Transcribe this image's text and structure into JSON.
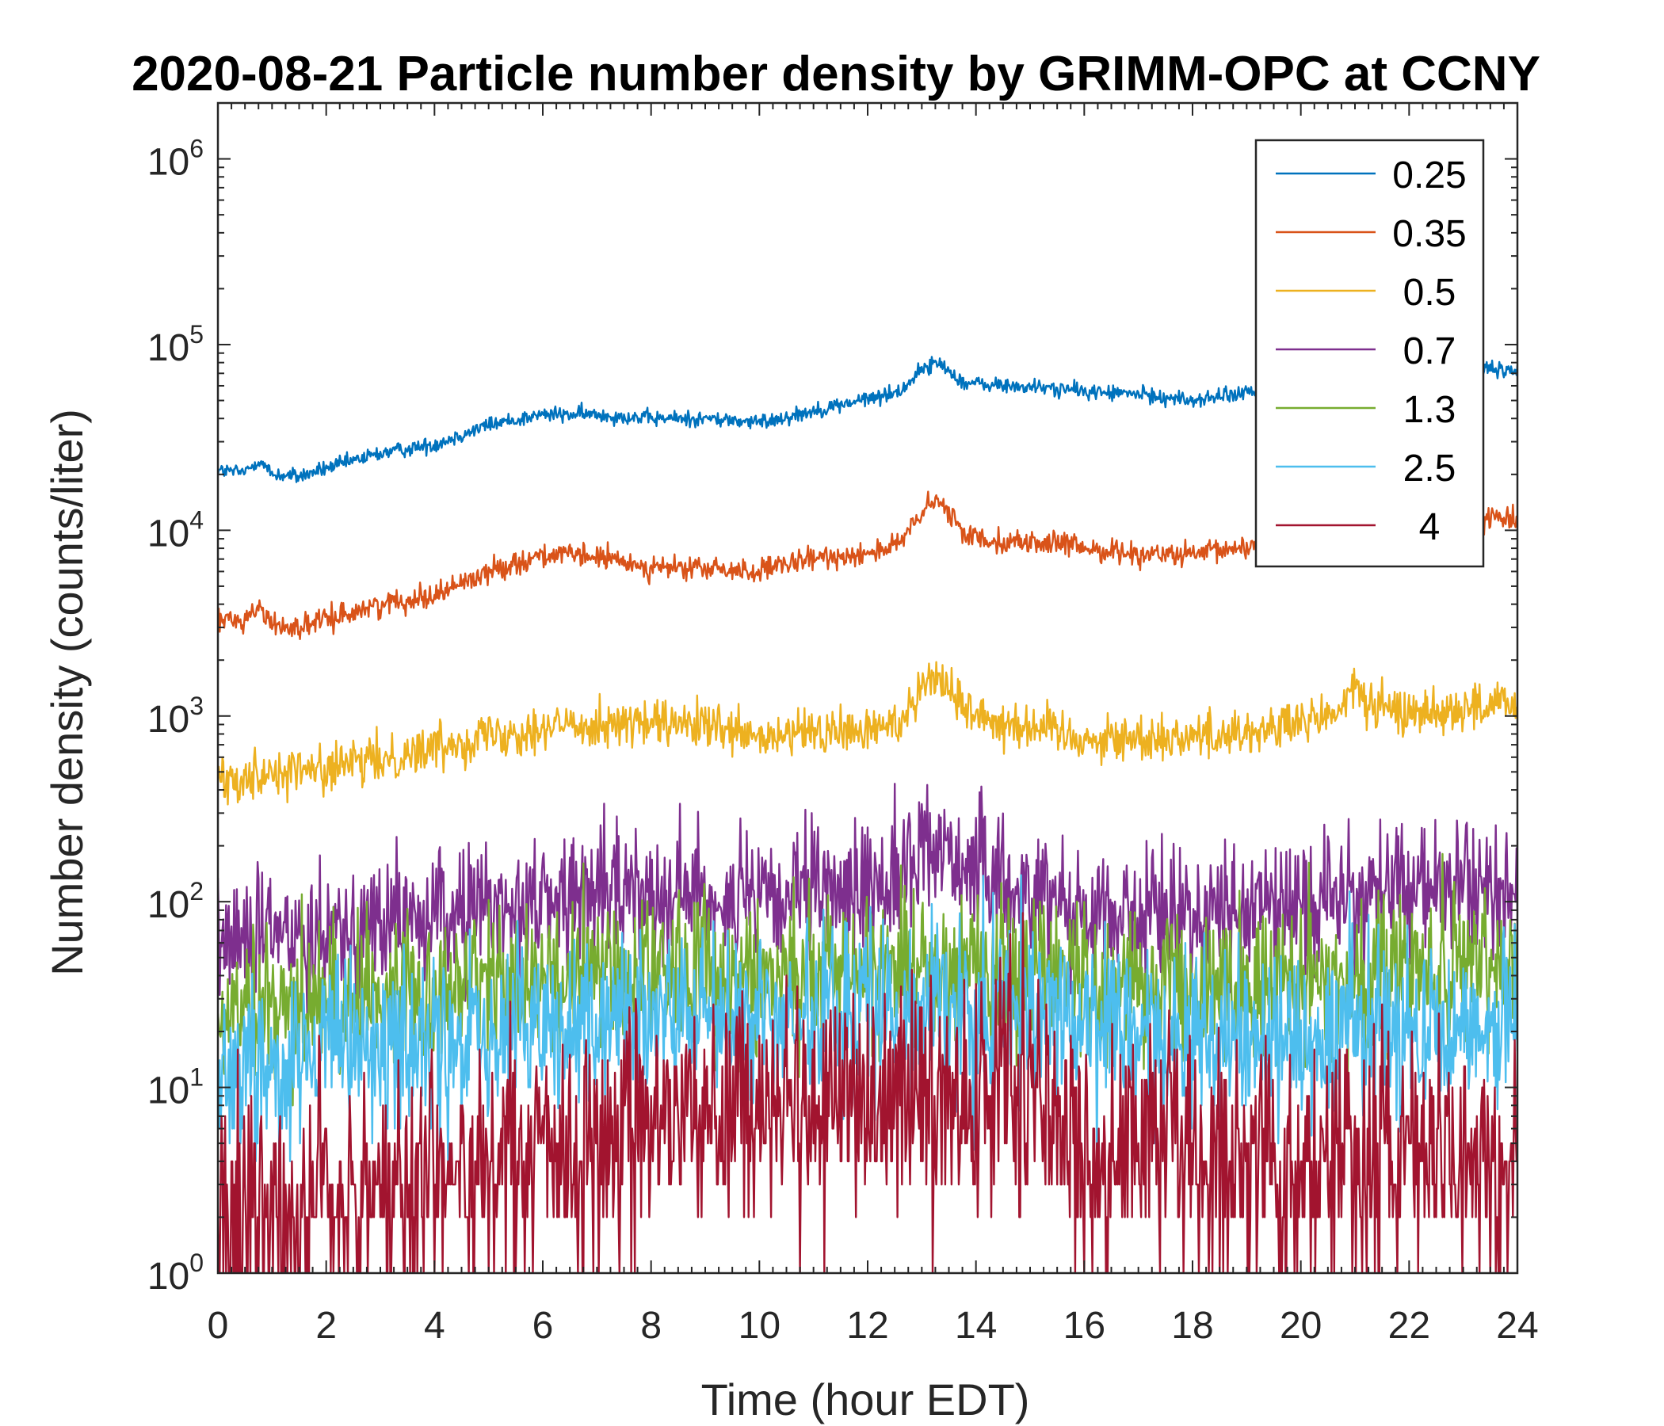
{
  "chart_data": {
    "type": "line",
    "title": "2020-08-21 Particle number density by GRIMM-OPC at CCNY",
    "xlabel": "Time (hour EDT)",
    "ylabel": "Number density (counts/liter)",
    "xlim": [
      0,
      24
    ],
    "ylim": [
      1,
      2000000
    ],
    "yscale": "log",
    "x_ticks": [
      0,
      2,
      4,
      6,
      8,
      10,
      12,
      14,
      16,
      18,
      20,
      22,
      24
    ],
    "x_tick_labels": [
      "0",
      "2",
      "4",
      "6",
      "8",
      "10",
      "12",
      "14",
      "16",
      "18",
      "20",
      "22",
      "24"
    ],
    "y_tick_labels": [
      {
        "value": 1,
        "base": "10",
        "exp": "0"
      },
      {
        "value": 10,
        "base": "10",
        "exp": "1"
      },
      {
        "value": 100,
        "base": "10",
        "exp": "2"
      },
      {
        "value": 1000,
        "base": "10",
        "exp": "3"
      },
      {
        "value": 10000,
        "base": "10",
        "exp": "4"
      },
      {
        "value": 100000,
        "base": "10",
        "exp": "5"
      },
      {
        "value": 1000000,
        "base": "10",
        "exp": "6"
      }
    ],
    "legend": {
      "position": "top-right"
    },
    "grid": false,
    "series": [
      {
        "name": "0.25",
        "color": "#0072BD",
        "x": [
          0,
          0.5,
          0.75,
          1,
          1.5,
          2,
          3,
          4,
          5,
          6,
          7,
          8,
          9,
          10,
          11,
          12,
          12.6,
          13,
          13.3,
          13.8,
          14.5,
          15.5,
          16,
          17,
          18,
          19,
          20,
          21,
          22,
          23,
          24
        ],
        "y": [
          21000,
          20500,
          24000,
          20000,
          19500,
          21500,
          26000,
          29000,
          37000,
          42000,
          42000,
          40000,
          40000,
          38000,
          44000,
          51000,
          56000,
          74000,
          80000,
          62000,
          60000,
          58000,
          56000,
          54000,
          50000,
          55000,
          56000,
          64000,
          70000,
          74000,
          72000
        ],
        "noise": 0.03
      },
      {
        "name": "0.35",
        "color": "#D95319",
        "x": [
          0,
          0.5,
          0.75,
          1,
          1.5,
          2,
          3,
          4,
          5,
          6,
          7,
          8,
          9,
          10,
          11,
          12,
          12.6,
          13,
          13.3,
          13.8,
          14.5,
          15.5,
          16,
          17,
          18,
          19,
          20,
          21,
          22,
          23,
          24
        ],
        "y": [
          3300,
          3300,
          3900,
          3100,
          3000,
          3300,
          4000,
          4500,
          6000,
          7400,
          7200,
          6300,
          6200,
          6000,
          7000,
          7600,
          8400,
          12500,
          14500,
          9500,
          8700,
          8500,
          8000,
          7500,
          7300,
          8200,
          9000,
          10000,
          11000,
          11500,
          12000
        ],
        "noise": 0.045
      },
      {
        "name": "0.5",
        "color": "#EDB120",
        "x": [
          0,
          0.5,
          1,
          2,
          3,
          4,
          5,
          6,
          7,
          8,
          9,
          10,
          11,
          12,
          12.6,
          13,
          13.3,
          13.8,
          14.5,
          15.5,
          16,
          17,
          18,
          19,
          20,
          20.8,
          21,
          21.3,
          22,
          23,
          24
        ],
        "y": [
          450,
          480,
          500,
          520,
          580,
          680,
          800,
          860,
          920,
          900,
          880,
          740,
          820,
          820,
          940,
          1500,
          1650,
          1100,
          920,
          850,
          750,
          760,
          780,
          820,
          900,
          1100,
          1500,
          1100,
          1050,
          1100,
          1150
        ],
        "noise": 0.09
      },
      {
        "name": "0.7",
        "color": "#7E2F8E",
        "x": [
          0,
          1,
          2,
          3,
          4,
          5,
          6,
          7,
          8,
          9,
          10,
          11,
          12,
          12.6,
          13,
          13.3,
          13.8,
          14.5,
          15.5,
          16,
          17,
          18,
          19,
          20,
          21,
          22,
          23,
          24
        ],
        "y": [
          60,
          65,
          72,
          78,
          82,
          95,
          100,
          110,
          120,
          110,
          95,
          110,
          120,
          140,
          190,
          210,
          160,
          120,
          110,
          90,
          85,
          85,
          90,
          100,
          110,
          120,
          115,
          115
        ],
        "noise": 0.25
      },
      {
        "name": "1.3",
        "color": "#77AC30",
        "x": [
          0,
          1,
          2,
          3,
          4,
          5,
          6,
          7,
          8,
          9,
          10,
          11,
          12,
          13,
          14,
          15,
          16,
          17,
          18,
          19,
          20,
          21,
          22,
          23,
          24
        ],
        "y": [
          22,
          26,
          30,
          32,
          34,
          36,
          38,
          40,
          45,
          42,
          40,
          44,
          46,
          46,
          45,
          44,
          38,
          35,
          35,
          36,
          38,
          40,
          42,
          42,
          44
        ],
        "noise": 0.3
      },
      {
        "name": "2.5",
        "color": "#4DBEEE",
        "x": [
          0,
          1,
          2,
          3,
          4,
          5,
          6,
          7,
          8,
          9,
          10,
          11,
          12,
          13,
          14,
          15,
          16,
          17,
          18,
          19,
          20,
          21,
          22,
          23,
          24
        ],
        "y": [
          13,
          14,
          15,
          16,
          17,
          18,
          20,
          22,
          25,
          24,
          22,
          24,
          26,
          28,
          27,
          26,
          20,
          18,
          18,
          19,
          20,
          21,
          22,
          22,
          22
        ],
        "noise": 0.35
      },
      {
        "name": "4",
        "color": "#A2142F",
        "x": [
          0,
          1,
          2,
          3,
          4,
          5,
          6,
          7,
          8,
          9,
          10,
          11,
          12,
          13,
          14,
          14.6,
          15,
          15.5,
          16,
          17,
          18,
          19,
          20,
          21,
          22,
          23,
          24
        ],
        "y": [
          2,
          2,
          2.5,
          3,
          3.2,
          3.5,
          4,
          5,
          7,
          8,
          7,
          8,
          9,
          10,
          9,
          11,
          10,
          6,
          5,
          4.5,
          4,
          4,
          4,
          4.2,
          4.3,
          4.2,
          4
        ],
        "noise": 0.45
      }
    ]
  }
}
